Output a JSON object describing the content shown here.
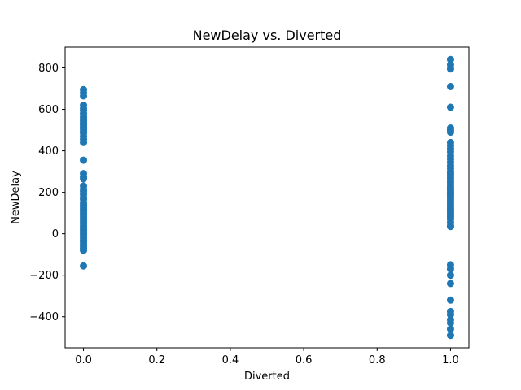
{
  "chart_data": {
    "type": "scatter",
    "title": "NewDelay vs. Diverted",
    "xlabel": "Diverted",
    "ylabel": "NewDelay",
    "xlim": [
      -0.05,
      1.05
    ],
    "ylim": [
      -550,
      900
    ],
    "xticks": [
      0.0,
      0.2,
      0.4,
      0.6,
      0.8,
      1.0
    ],
    "xtick_labels": [
      "0.0",
      "0.2",
      "0.4",
      "0.6",
      "0.8",
      "1.0"
    ],
    "yticks": [
      -400,
      -200,
      0,
      200,
      400,
      600,
      800
    ],
    "ytick_labels": [
      "−400",
      "−200",
      "0",
      "200",
      "400",
      "600",
      "800"
    ],
    "grid": false,
    "marker_color": "#1f77b4",
    "series": [
      {
        "points": [
          [
            0,
            695
          ],
          [
            0,
            680
          ],
          [
            0,
            665
          ],
          [
            0,
            620
          ],
          [
            0,
            605
          ],
          [
            0,
            595
          ],
          [
            0,
            580
          ],
          [
            0,
            565
          ],
          [
            0,
            555
          ],
          [
            0,
            545
          ],
          [
            0,
            535
          ],
          [
            0,
            525
          ],
          [
            0,
            515
          ],
          [
            0,
            505
          ],
          [
            0,
            495
          ],
          [
            0,
            485
          ],
          [
            0,
            470
          ],
          [
            0,
            455
          ],
          [
            0,
            440
          ],
          [
            0,
            355
          ],
          [
            0,
            290
          ],
          [
            0,
            275
          ],
          [
            0,
            265
          ],
          [
            0,
            230
          ],
          [
            0,
            215
          ],
          [
            0,
            205
          ],
          [
            0,
            190
          ],
          [
            0,
            175
          ],
          [
            0,
            165
          ],
          [
            0,
            150
          ],
          [
            0,
            140
          ],
          [
            0,
            130
          ],
          [
            0,
            120
          ],
          [
            0,
            110
          ],
          [
            0,
            100
          ],
          [
            0,
            90
          ],
          [
            0,
            80
          ],
          [
            0,
            70
          ],
          [
            0,
            60
          ],
          [
            0,
            50
          ],
          [
            0,
            40
          ],
          [
            0,
            30
          ],
          [
            0,
            20
          ],
          [
            0,
            10
          ],
          [
            0,
            0
          ],
          [
            0,
            -10
          ],
          [
            0,
            -20
          ],
          [
            0,
            -30
          ],
          [
            0,
            -40
          ],
          [
            0,
            -50
          ],
          [
            0,
            -60
          ],
          [
            0,
            -70
          ],
          [
            0,
            -80
          ],
          [
            0,
            -155
          ],
          [
            1,
            840
          ],
          [
            1,
            815
          ],
          [
            1,
            795
          ],
          [
            1,
            710
          ],
          [
            1,
            610
          ],
          [
            1,
            510
          ],
          [
            1,
            500
          ],
          [
            1,
            490
          ],
          [
            1,
            440
          ],
          [
            1,
            425
          ],
          [
            1,
            410
          ],
          [
            1,
            395
          ],
          [
            1,
            375
          ],
          [
            1,
            360
          ],
          [
            1,
            345
          ],
          [
            1,
            330
          ],
          [
            1,
            315
          ],
          [
            1,
            300
          ],
          [
            1,
            290
          ],
          [
            1,
            280
          ],
          [
            1,
            270
          ],
          [
            1,
            260
          ],
          [
            1,
            250
          ],
          [
            1,
            240
          ],
          [
            1,
            230
          ],
          [
            1,
            220
          ],
          [
            1,
            210
          ],
          [
            1,
            200
          ],
          [
            1,
            190
          ],
          [
            1,
            180
          ],
          [
            1,
            170
          ],
          [
            1,
            160
          ],
          [
            1,
            150
          ],
          [
            1,
            140
          ],
          [
            1,
            130
          ],
          [
            1,
            120
          ],
          [
            1,
            110
          ],
          [
            1,
            100
          ],
          [
            1,
            90
          ],
          [
            1,
            80
          ],
          [
            1,
            70
          ],
          [
            1,
            55
          ],
          [
            1,
            40
          ],
          [
            1,
            35
          ],
          [
            1,
            -150
          ],
          [
            1,
            -170
          ],
          [
            1,
            -200
          ],
          [
            1,
            -240
          ],
          [
            1,
            -320
          ],
          [
            1,
            -375
          ],
          [
            1,
            -390
          ],
          [
            1,
            -415
          ],
          [
            1,
            -430
          ],
          [
            1,
            -460
          ],
          [
            1,
            -490
          ]
        ]
      }
    ]
  }
}
